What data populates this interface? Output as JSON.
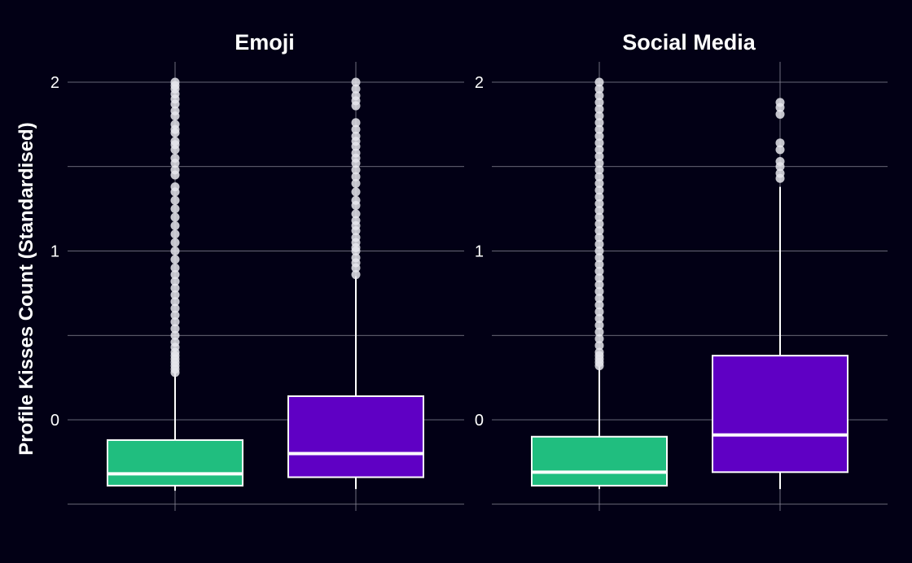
{
  "chart_data": {
    "type": "boxplot",
    "ylabel": "Profile Kisses Count (Standardised)",
    "ylim": [
      -0.5,
      2.1
    ],
    "yticks": [
      0,
      1,
      2
    ],
    "ytick_labels": [
      "0",
      "1",
      "2"
    ],
    "grid": true,
    "box_colors": [
      "#20be7f",
      "#5f00c4"
    ],
    "outlier_color": "#e6e6ec",
    "panels": [
      {
        "title": "Emoji",
        "boxes": [
          {
            "q1": -0.39,
            "median": -0.32,
            "q3": -0.12,
            "whisker_low": -0.42,
            "whisker_high": 0.28,
            "outliers": [
              0.28,
              0.3,
              0.32,
              0.34,
              0.36,
              0.38,
              0.4,
              0.43,
              0.46,
              0.5,
              0.54,
              0.58,
              0.62,
              0.66,
              0.7,
              0.74,
              0.78,
              0.82,
              0.86,
              0.9,
              0.95,
              1.0,
              1.05,
              1.1,
              1.15,
              1.2,
              1.25,
              1.3,
              1.35,
              1.38,
              1.45,
              1.48,
              1.52,
              1.55,
              1.6,
              1.63,
              1.65,
              1.7,
              1.72,
              1.75,
              1.8,
              1.83,
              1.87,
              1.9,
              1.93,
              1.96,
              1.98,
              2.0
            ]
          },
          {
            "q1": -0.34,
            "median": -0.2,
            "q3": 0.14,
            "whisker_low": -0.41,
            "whisker_high": 0.85,
            "outliers": [
              0.86,
              0.9,
              0.93,
              0.96,
              1.0,
              1.02,
              1.05,
              1.08,
              1.12,
              1.15,
              1.18,
              1.22,
              1.27,
              1.3,
              1.35,
              1.4,
              1.44,
              1.48,
              1.52,
              1.55,
              1.58,
              1.62,
              1.65,
              1.68,
              1.72,
              1.76,
              1.86,
              1.89,
              1.92,
              1.96,
              2.0
            ]
          }
        ]
      },
      {
        "title": "Social Media",
        "boxes": [
          {
            "q1": -0.39,
            "median": -0.31,
            "q3": -0.1,
            "whisker_low": -0.41,
            "whisker_high": 0.32,
            "outliers": [
              0.32,
              0.34,
              0.36,
              0.38,
              0.4,
              0.44,
              0.48,
              0.52,
              0.56,
              0.6,
              0.64,
              0.68,
              0.72,
              0.76,
              0.8,
              0.84,
              0.88,
              0.92,
              0.96,
              1.0,
              1.04,
              1.08,
              1.12,
              1.16,
              1.2,
              1.24,
              1.28,
              1.32,
              1.36,
              1.4,
              1.44,
              1.48,
              1.52,
              1.56,
              1.6,
              1.64,
              1.68,
              1.72,
              1.76,
              1.8,
              1.84,
              1.88,
              1.92,
              1.96,
              2.0
            ]
          },
          {
            "q1": -0.31,
            "median": -0.09,
            "q3": 0.38,
            "whisker_low": -0.41,
            "whisker_high": 1.38,
            "outliers": [
              1.43,
              1.46,
              1.5,
              1.53,
              1.6,
              1.64,
              1.81,
              1.85,
              1.88
            ]
          }
        ]
      }
    ]
  }
}
